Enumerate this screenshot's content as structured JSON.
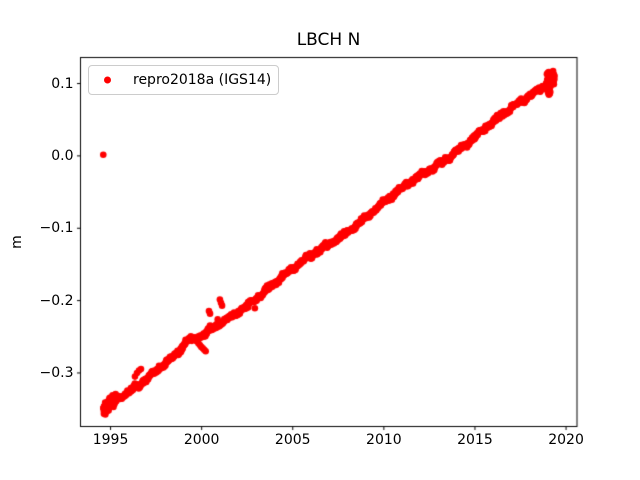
{
  "figure": {
    "background": "#ffffff",
    "frame_color": "#000000",
    "legend_border_color": "#cccccc"
  },
  "chart_data": {
    "type": "scatter",
    "title": "LBCH N",
    "xlabel": "",
    "ylabel": "m",
    "xlim": [
      1993.35,
      2020.6
    ],
    "ylim": [
      -0.374,
      0.136
    ],
    "grid": false,
    "legend": {
      "label": "repro2018a (IGS14)",
      "position": "upper left"
    },
    "xticks": {
      "values": [
        1995,
        2000,
        2005,
        2010,
        2015,
        2020
      ],
      "labels": [
        "1995",
        "2000",
        "2005",
        "2010",
        "2015",
        "2020"
      ]
    },
    "yticks": {
      "values": [
        0.1,
        0.0,
        -0.1,
        -0.2,
        -0.3
      ],
      "labels": [
        "0.1",
        "0.0",
        "−0.1",
        "−0.2",
        "−0.3"
      ]
    },
    "series": [
      {
        "name": "repro2018a (IGS14)",
        "color": "#ff0000",
        "marker": "point",
        "marker_diameter_px": 6.6,
        "x_start": 1994.62,
        "x_end": 2019.35,
        "slope_m_per_yr": 0.0185,
        "trend_checkpoints": [
          [
            1994.62,
            -0.3495
          ],
          [
            1997.0,
            -0.3055
          ],
          [
            2000.0,
            -0.25
          ],
          [
            2003.0,
            -0.195
          ],
          [
            2006.0,
            -0.1395
          ],
          [
            2009.0,
            -0.084
          ],
          [
            2012.0,
            -0.0285
          ],
          [
            2015.0,
            0.027
          ],
          [
            2017.5,
            0.073
          ],
          [
            2019.35,
            0.1075
          ]
        ],
        "samples_per_year": 56,
        "noise_sd_m": 0.0015,
        "wiggles": [
          {
            "amp": 0.0026,
            "period_yr": 5.8,
            "phase": 2.0
          },
          {
            "amp": 0.0015,
            "period_yr": 1.05,
            "phase": 0.7
          },
          {
            "amp": 0.001,
            "period_yr": 0.45,
            "phase": 0.2
          }
        ],
        "bumps": [
          {
            "center": 1999.2,
            "amp": 0.006,
            "sigma_yr": 0.28
          }
        ],
        "dense_segments": [
          {
            "x_start": 1994.62,
            "x_end": 1995.3,
            "samples_per_year": 260,
            "noise_sd_m": 0.003
          },
          {
            "x_start": 2018.92,
            "x_end": 2019.35,
            "samples_per_year": 260,
            "noise_sd_m": 0.004
          }
        ],
        "outliers": [
          [
            1994.6,
            0.0015
          ],
          [
            1996.34,
            -0.305
          ],
          [
            1996.45,
            -0.3
          ],
          [
            1996.56,
            -0.2965
          ],
          [
            1996.67,
            -0.2945
          ],
          [
            1999.82,
            -0.259
          ],
          [
            1999.9,
            -0.2615
          ],
          [
            1999.98,
            -0.264
          ],
          [
            2000.06,
            -0.266
          ],
          [
            2000.14,
            -0.268
          ],
          [
            2000.22,
            -0.27
          ],
          [
            2000.4,
            -0.2145
          ],
          [
            2000.46,
            -0.218
          ],
          [
            2000.88,
            -0.226
          ],
          [
            2001.0,
            -0.1985
          ],
          [
            2001.06,
            -0.203
          ],
          [
            2001.12,
            -0.207
          ],
          [
            2002.55,
            -0.2095
          ],
          [
            2002.92,
            -0.2105
          ],
          [
            2018.97,
            0.091
          ],
          [
            2019.0,
            0.0885
          ],
          [
            2019.03,
            0.0862
          ],
          [
            2019.06,
            0.0845
          ],
          [
            2019.1,
            0.086
          ],
          [
            2019.13,
            0.0885
          ],
          [
            2018.95,
            0.113
          ],
          [
            2019.0,
            0.115
          ],
          [
            2019.05,
            0.116
          ],
          [
            2019.1,
            0.1145
          ],
          [
            2019.2,
            0.112
          ],
          [
            2019.3,
            0.11
          ]
        ]
      }
    ]
  }
}
